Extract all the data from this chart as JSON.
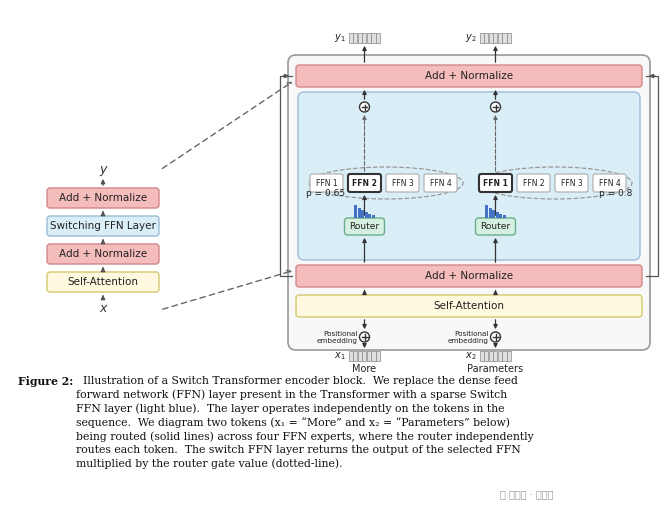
{
  "bg": "#ffffff",
  "pink_fc": "#f5bcbc",
  "pink_ec": "#d08888",
  "blue_fc": "#daeef8",
  "blue_ec": "#9bbbd4",
  "yellow_fc": "#fef9df",
  "yellow_ec": "#d4c870",
  "router_fc": "#d5f0e0",
  "router_ec": "#6aad8a",
  "ffn_fc": "#ffffff",
  "ffn_ec": "#aaaaaa",
  "ffn_sel_ec": "#333333",
  "dark": "#333333",
  "arrow_c": "#555555",
  "token_fc": "#e0e0e0",
  "token_ec": "#888888",
  "bar_c": "#4472c4",
  "outer_fc": "#f8f8f8",
  "outer_ec": "#999999",
  "caption_lines": [
    [
      "Figure 2:",
      true,
      "  Illustration of a Switch Transformer encoder block.  We replace the dense feed"
    ],
    [
      "",
      false,
      "forward network (FFN) layer present in the Transformer with a sparse Switch"
    ],
    [
      "",
      false,
      "FFN layer (light blue).  The layer operates independently on the tokens in the"
    ],
    [
      "",
      false,
      "sequence.  We diagram two tokens (x₁ = “More” and x₂ = “Parameters” below)"
    ],
    [
      "",
      false,
      "being routed (solid lines) across four FFN experts, where the router independently"
    ],
    [
      "",
      false,
      "routes each token.  The switch FFN layer returns the output of the selected FFN"
    ],
    [
      "",
      false,
      "multiplied by the router gate value (dotted-line)."
    ]
  ]
}
